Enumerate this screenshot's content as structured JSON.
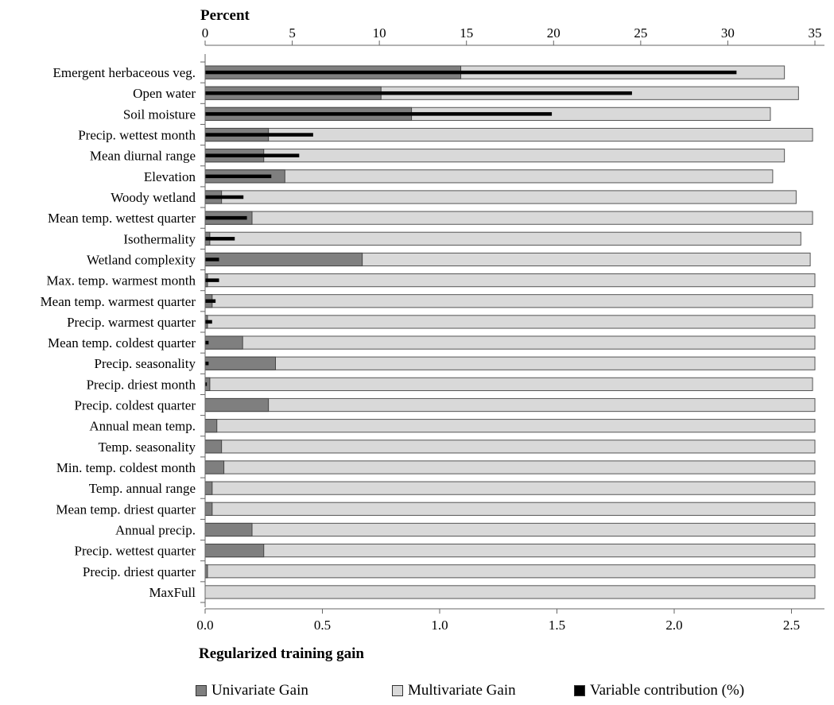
{
  "chart_data": {
    "type": "bar",
    "orientation": "horizontal",
    "top_axis": {
      "title": "Percent",
      "range": [
        0,
        35
      ],
      "ticks": [
        "0",
        "5",
        "10",
        "15",
        "20",
        "25",
        "30",
        "35"
      ]
    },
    "bottom_axis": {
      "title": "Regularized training gain",
      "range": [
        0,
        2.6
      ],
      "ticks": [
        "0.0",
        "0.5",
        "1.0",
        "1.5",
        "2.0",
        "2.5"
      ]
    },
    "categories": [
      "Emergent herbaceous veg.",
      "Open water",
      "Soil moisture",
      "Precip. wettest month",
      "Mean diurnal range",
      "Elevation",
      "Woody wetland",
      "Mean temp. wettest quarter",
      "Isothermality",
      "Wetland complexity",
      "Max. temp. warmest month",
      "Mean temp. warmest quarter",
      "Precip. warmest quarter",
      "Mean temp. coldest quarter",
      "Precip. seasonality",
      "Precip. driest month",
      "Precip. coldest quarter",
      "Annual mean temp.",
      "Temp. seasonality",
      "Min. temp. coldest month",
      "Temp. annual range",
      "Mean temp. driest quarter",
      "Annual precip.",
      "Precip.  wettest quarter",
      "Precip. driest quarter",
      "MaxFull"
    ],
    "series": [
      {
        "name": "Univariate Gain",
        "color": "#7f7f7f",
        "axis": "bottom",
        "values": [
          1.09,
          0.75,
          0.88,
          0.27,
          0.25,
          0.34,
          0.07,
          0.2,
          0.02,
          0.67,
          0.01,
          0.03,
          0.01,
          0.16,
          0.3,
          0.02,
          0.27,
          0.05,
          0.07,
          0.08,
          0.03,
          0.03,
          0.2,
          0.25,
          0.01,
          0.0
        ]
      },
      {
        "name": "Multivariate Gain",
        "color": "#d9d9d9",
        "axis": "bottom",
        "values": [
          2.47,
          2.53,
          2.41,
          2.59,
          2.47,
          2.42,
          2.52,
          2.59,
          2.54,
          2.58,
          2.6,
          2.59,
          2.6,
          2.6,
          2.6,
          2.59,
          2.6,
          2.6,
          2.6,
          2.6,
          2.6,
          2.6,
          2.6,
          2.6,
          2.6,
          2.6
        ]
      },
      {
        "name": "Variable contribution (%)",
        "color": "#000000",
        "axis": "top",
        "values": [
          30.5,
          24.5,
          19.9,
          6.2,
          5.4,
          3.8,
          2.2,
          2.4,
          1.7,
          0.8,
          0.8,
          0.6,
          0.4,
          0.2,
          0.2,
          0.1,
          0.0,
          0.0,
          0.0,
          0.0,
          0.0,
          0.0,
          0.0,
          0.0,
          0.0,
          0.0
        ]
      }
    ],
    "legend_position": "bottom",
    "grid": false
  }
}
